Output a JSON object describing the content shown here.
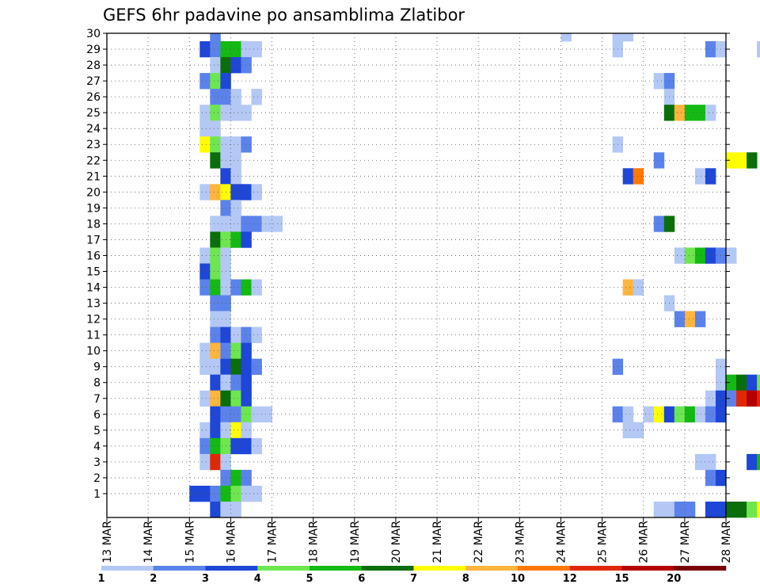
{
  "chart_data": {
    "type": "heatmap",
    "title": "GEFS 6hr padavine po ansamblima Zlatibor",
    "xlabel": "",
    "ylabel": "",
    "x_ticks": [
      "13 MAR",
      "14 MAR",
      "15 MAR",
      "16 MAR",
      "17 MAR",
      "18 MAR",
      "19 MAR",
      "20 MAR",
      "21 MAR",
      "22 MAR",
      "23 MAR",
      "24 MAR",
      "25 MAR",
      "26 MAR",
      "27 MAR",
      "28 MAR"
    ],
    "y_ticks": [
      1,
      2,
      3,
      4,
      5,
      6,
      7,
      8,
      9,
      10,
      11,
      12,
      13,
      14,
      15,
      16,
      17,
      18,
      19,
      20,
      21,
      22,
      23,
      24,
      25,
      26,
      27,
      28,
      29,
      30
    ],
    "xlim": [
      "13 MAR 00",
      "28 MAR 00"
    ],
    "ylim": [
      0,
      30
    ],
    "time_step_hours": 6,
    "grid": "dotted",
    "colorbar": {
      "position": "bottom",
      "tick_labels": [
        "1",
        "2",
        "3",
        "4",
        "5",
        "6",
        "7",
        "8",
        "10",
        "12",
        "15",
        "20"
      ],
      "bins": [
        {
          "from": 1,
          "to": 2,
          "color": "#b4c8f5"
        },
        {
          "from": 2,
          "to": 3,
          "color": "#5b82eb"
        },
        {
          "from": 3,
          "to": 4,
          "color": "#1e46d7"
        },
        {
          "from": 4,
          "to": 5,
          "color": "#6ee650"
        },
        {
          "from": 5,
          "to": 6,
          "color": "#14b914"
        },
        {
          "from": 6,
          "to": 7,
          "color": "#0a6e0a"
        },
        {
          "from": 7,
          "to": 8,
          "color": "#ffff00"
        },
        {
          "from": 8,
          "to": 10,
          "color": "#ffb43c"
        },
        {
          "from": 10,
          "to": 12,
          "color": "#ff7800"
        },
        {
          "from": 12,
          "to": 15,
          "color": "#e12800"
        },
        {
          "from": 15,
          "to": 20,
          "color": "#b40000"
        },
        {
          "from": 20,
          "to": 30,
          "color": "#780000"
        }
      ]
    },
    "cells_format": "each entry: [ensemble member (y), time step index from 13 MAR 00 UTC in 6h steps, precipitation class index into colorbar.bins]",
    "cells": [
      [
        30,
        10,
        1
      ],
      [
        30,
        44,
        0
      ],
      [
        30,
        49,
        0
      ],
      [
        30,
        50,
        0
      ],
      [
        29,
        9,
        2
      ],
      [
        29,
        10,
        1
      ],
      [
        29,
        11,
        4
      ],
      [
        29,
        12,
        4
      ],
      [
        29,
        13,
        0
      ],
      [
        29,
        14,
        0
      ],
      [
        29,
        49,
        0
      ],
      [
        29,
        58,
        1
      ],
      [
        29,
        59,
        0
      ],
      [
        29,
        63,
        0
      ],
      [
        29,
        71,
        0
      ],
      [
        29,
        75,
        0
      ],
      [
        29,
        76,
        0
      ],
      [
        29,
        77,
        0
      ],
      [
        28,
        10,
        0
      ],
      [
        28,
        11,
        5
      ],
      [
        28,
        12,
        2
      ],
      [
        28,
        13,
        1
      ],
      [
        27,
        9,
        1
      ],
      [
        27,
        10,
        3
      ],
      [
        27,
        11,
        2
      ],
      [
        27,
        53,
        0
      ],
      [
        27,
        54,
        1
      ],
      [
        27,
        76,
        0
      ],
      [
        27,
        78,
        0
      ],
      [
        27,
        79,
        3
      ],
      [
        27,
        80,
        0
      ],
      [
        26,
        10,
        1
      ],
      [
        26,
        11,
        1
      ],
      [
        26,
        12,
        0
      ],
      [
        26,
        14,
        0
      ],
      [
        26,
        54,
        0
      ],
      [
        26,
        75,
        0
      ],
      [
        25,
        9,
        0
      ],
      [
        25,
        10,
        3
      ],
      [
        25,
        11,
        0
      ],
      [
        25,
        12,
        0
      ],
      [
        25,
        13,
        0
      ],
      [
        25,
        54,
        5
      ],
      [
        25,
        55,
        7
      ],
      [
        25,
        56,
        4
      ],
      [
        25,
        57,
        4
      ],
      [
        25,
        58,
        0
      ],
      [
        25,
        69,
        4
      ],
      [
        25,
        70,
        2
      ],
      [
        25,
        71,
        0
      ],
      [
        25,
        72,
        2
      ],
      [
        25,
        73,
        0
      ],
      [
        25,
        74,
        0
      ],
      [
        25,
        75,
        0
      ],
      [
        24,
        9,
        0
      ],
      [
        24,
        10,
        0
      ],
      [
        24,
        70,
        0
      ],
      [
        23,
        9,
        6
      ],
      [
        23,
        10,
        3
      ],
      [
        23,
        11,
        0
      ],
      [
        23,
        12,
        0
      ],
      [
        23,
        13,
        1
      ],
      [
        23,
        49,
        0
      ],
      [
        23,
        76,
        0
      ],
      [
        23,
        78,
        0
      ],
      [
        22,
        10,
        5
      ],
      [
        22,
        11,
        0
      ],
      [
        22,
        12,
        0
      ],
      [
        22,
        53,
        1
      ],
      [
        22,
        60,
        6
      ],
      [
        22,
        61,
        6
      ],
      [
        22,
        62,
        5
      ],
      [
        21,
        11,
        2
      ],
      [
        21,
        12,
        0
      ],
      [
        21,
        50,
        2
      ],
      [
        21,
        51,
        8
      ],
      [
        21,
        57,
        0
      ],
      [
        21,
        58,
        2
      ],
      [
        20,
        9,
        0
      ],
      [
        20,
        10,
        7
      ],
      [
        20,
        11,
        6
      ],
      [
        20,
        12,
        2
      ],
      [
        20,
        13,
        2
      ],
      [
        20,
        14,
        0
      ],
      [
        20,
        66,
        0
      ],
      [
        20,
        69,
        1
      ],
      [
        20,
        76,
        6
      ],
      [
        20,
        77,
        7
      ],
      [
        20,
        78,
        4
      ],
      [
        20,
        79,
        0
      ],
      [
        19,
        11,
        1
      ],
      [
        19,
        12,
        0
      ],
      [
        19,
        65,
        6
      ],
      [
        19,
        66,
        7
      ],
      [
        19,
        67,
        1
      ],
      [
        19,
        68,
        3
      ],
      [
        19,
        74,
        0
      ],
      [
        19,
        75,
        0
      ],
      [
        19,
        76,
        2
      ],
      [
        18,
        10,
        0
      ],
      [
        18,
        11,
        0
      ],
      [
        18,
        12,
        0
      ],
      [
        18,
        13,
        1
      ],
      [
        18,
        14,
        1
      ],
      [
        18,
        15,
        0
      ],
      [
        18,
        16,
        0
      ],
      [
        18,
        53,
        1
      ],
      [
        18,
        54,
        5
      ],
      [
        18,
        76,
        4
      ],
      [
        18,
        77,
        0
      ],
      [
        17,
        10,
        5
      ],
      [
        17,
        11,
        3
      ],
      [
        17,
        12,
        4
      ],
      [
        17,
        13,
        2
      ],
      [
        17,
        72,
        0
      ],
      [
        17,
        76,
        0
      ],
      [
        17,
        77,
        1
      ],
      [
        17,
        78,
        1
      ],
      [
        16,
        9,
        0
      ],
      [
        16,
        10,
        3
      ],
      [
        16,
        11,
        0
      ],
      [
        16,
        55,
        0
      ],
      [
        16,
        56,
        3
      ],
      [
        16,
        57,
        4
      ],
      [
        16,
        58,
        2
      ],
      [
        16,
        59,
        1
      ],
      [
        16,
        60,
        0
      ],
      [
        15,
        9,
        2
      ],
      [
        15,
        10,
        3
      ],
      [
        15,
        11,
        0
      ],
      [
        14,
        9,
        1
      ],
      [
        14,
        10,
        4
      ],
      [
        14,
        11,
        0
      ],
      [
        14,
        12,
        1
      ],
      [
        14,
        13,
        4
      ],
      [
        14,
        14,
        0
      ],
      [
        14,
        50,
        7
      ],
      [
        14,
        51,
        0
      ],
      [
        14,
        66,
        0
      ],
      [
        14,
        69,
        10
      ],
      [
        14,
        70,
        7
      ],
      [
        14,
        71,
        3
      ],
      [
        14,
        72,
        0
      ],
      [
        14,
        73,
        0
      ],
      [
        14,
        74,
        4
      ],
      [
        13,
        10,
        1
      ],
      [
        13,
        11,
        1
      ],
      [
        13,
        54,
        0
      ],
      [
        13,
        69,
        0
      ],
      [
        13,
        70,
        3
      ],
      [
        13,
        71,
        0
      ],
      [
        13,
        72,
        2
      ],
      [
        13,
        73,
        0
      ],
      [
        12,
        10,
        0
      ],
      [
        12,
        11,
        0
      ],
      [
        12,
        55,
        1
      ],
      [
        12,
        56,
        7
      ],
      [
        12,
        57,
        1
      ],
      [
        12,
        79,
        0
      ],
      [
        12,
        80,
        0
      ],
      [
        11,
        10,
        1
      ],
      [
        11,
        11,
        2
      ],
      [
        11,
        12,
        0
      ],
      [
        11,
        13,
        1
      ],
      [
        11,
        14,
        0
      ],
      [
        11,
        75,
        0
      ],
      [
        11,
        76,
        0
      ],
      [
        10,
        9,
        0
      ],
      [
        10,
        10,
        7
      ],
      [
        10,
        11,
        1
      ],
      [
        10,
        12,
        3
      ],
      [
        10,
        13,
        2
      ],
      [
        10,
        64,
        1
      ],
      [
        10,
        67,
        1
      ],
      [
        10,
        68,
        2
      ],
      [
        10,
        71,
        1
      ],
      [
        10,
        72,
        4
      ],
      [
        10,
        81,
        5
      ],
      [
        9,
        9,
        0
      ],
      [
        9,
        10,
        0
      ],
      [
        9,
        11,
        2
      ],
      [
        9,
        12,
        5
      ],
      [
        9,
        13,
        2
      ],
      [
        9,
        14,
        1
      ],
      [
        9,
        49,
        1
      ],
      [
        9,
        59,
        0
      ],
      [
        8,
        10,
        2
      ],
      [
        8,
        11,
        0
      ],
      [
        8,
        12,
        1
      ],
      [
        8,
        13,
        2
      ],
      [
        8,
        59,
        0
      ],
      [
        8,
        60,
        4
      ],
      [
        8,
        61,
        5
      ],
      [
        8,
        62,
        2
      ],
      [
        8,
        63,
        3
      ],
      [
        8,
        64,
        1
      ],
      [
        8,
        66,
        3
      ],
      [
        8,
        68,
        0
      ],
      [
        7,
        9,
        0
      ],
      [
        7,
        10,
        7
      ],
      [
        7,
        11,
        5
      ],
      [
        7,
        12,
        3
      ],
      [
        7,
        13,
        2
      ],
      [
        7,
        58,
        0
      ],
      [
        7,
        59,
        2
      ],
      [
        7,
        60,
        1
      ],
      [
        7,
        61,
        9
      ],
      [
        7,
        62,
        10
      ],
      [
        7,
        63,
        9
      ],
      [
        7,
        64,
        4
      ],
      [
        7,
        65,
        5
      ],
      [
        7,
        69,
        1
      ],
      [
        7,
        70,
        1
      ],
      [
        7,
        71,
        1
      ],
      [
        7,
        72,
        5
      ],
      [
        7,
        73,
        4
      ],
      [
        7,
        74,
        5
      ],
      [
        7,
        75,
        0
      ],
      [
        6,
        10,
        2
      ],
      [
        6,
        11,
        1
      ],
      [
        6,
        12,
        1
      ],
      [
        6,
        13,
        3
      ],
      [
        6,
        14,
        0
      ],
      [
        6,
        15,
        0
      ],
      [
        6,
        49,
        1
      ],
      [
        6,
        50,
        0
      ],
      [
        6,
        52,
        0
      ],
      [
        6,
        53,
        6
      ],
      [
        6,
        54,
        2
      ],
      [
        6,
        55,
        3
      ],
      [
        6,
        56,
        4
      ],
      [
        6,
        57,
        0
      ],
      [
        6,
        58,
        1
      ],
      [
        6,
        59,
        2
      ],
      [
        6,
        68,
        0
      ],
      [
        6,
        69,
        5
      ],
      [
        6,
        70,
        4
      ],
      [
        6,
        71,
        0
      ],
      [
        6,
        73,
        0
      ],
      [
        6,
        74,
        3
      ],
      [
        5,
        9,
        0
      ],
      [
        5,
        10,
        2
      ],
      [
        5,
        11,
        0
      ],
      [
        5,
        12,
        6
      ],
      [
        5,
        13,
        0
      ],
      [
        5,
        50,
        0
      ],
      [
        5,
        51,
        0
      ],
      [
        5,
        76,
        0
      ],
      [
        5,
        78,
        0
      ],
      [
        4,
        9,
        1
      ],
      [
        4,
        10,
        4
      ],
      [
        4,
        11,
        3
      ],
      [
        4,
        12,
        2
      ],
      [
        4,
        13,
        2
      ],
      [
        4,
        14,
        0
      ],
      [
        4,
        70,
        0
      ],
      [
        4,
        71,
        0
      ],
      [
        4,
        72,
        0
      ],
      [
        4,
        73,
        0
      ],
      [
        4,
        74,
        0
      ],
      [
        4,
        76,
        0
      ],
      [
        4,
        77,
        0
      ],
      [
        3,
        9,
        0
      ],
      [
        3,
        10,
        9
      ],
      [
        3,
        11,
        0
      ],
      [
        3,
        57,
        0
      ],
      [
        3,
        58,
        0
      ],
      [
        3,
        62,
        2
      ],
      [
        3,
        63,
        4
      ],
      [
        3,
        64,
        0
      ],
      [
        2,
        11,
        1
      ],
      [
        2,
        12,
        4
      ],
      [
        2,
        13,
        1
      ],
      [
        2,
        58,
        1
      ],
      [
        2,
        59,
        2
      ],
      [
        2,
        76,
        1
      ],
      [
        2,
        78,
        0
      ],
      [
        1,
        8,
        2
      ],
      [
        1,
        9,
        2
      ],
      [
        1,
        10,
        1
      ],
      [
        1,
        11,
        4
      ],
      [
        1,
        12,
        3
      ],
      [
        1,
        13,
        0
      ],
      [
        1,
        14,
        0
      ],
      [
        1,
        67,
        0
      ],
      [
        1,
        68,
        1
      ],
      [
        1,
        69,
        2
      ],
      [
        1,
        70,
        6
      ],
      [
        1,
        71,
        10
      ],
      [
        1,
        72,
        7
      ],
      [
        1,
        73,
        0
      ],
      [
        1,
        74,
        0
      ],
      [
        1,
        75,
        0
      ],
      [
        0,
        10,
        2
      ],
      [
        0,
        11,
        0
      ],
      [
        0,
        12,
        0
      ],
      [
        0,
        53,
        0
      ],
      [
        0,
        54,
        0
      ],
      [
        0,
        55,
        1
      ],
      [
        0,
        56,
        1
      ],
      [
        0,
        58,
        2
      ],
      [
        0,
        59,
        2
      ],
      [
        0,
        60,
        5
      ],
      [
        0,
        61,
        5
      ],
      [
        0,
        62,
        3
      ],
      [
        0,
        63,
        6
      ],
      [
        0,
        64,
        5
      ],
      [
        0,
        65,
        2
      ],
      [
        0,
        72,
        0
      ],
      [
        0,
        81,
        5
      ]
    ]
  }
}
